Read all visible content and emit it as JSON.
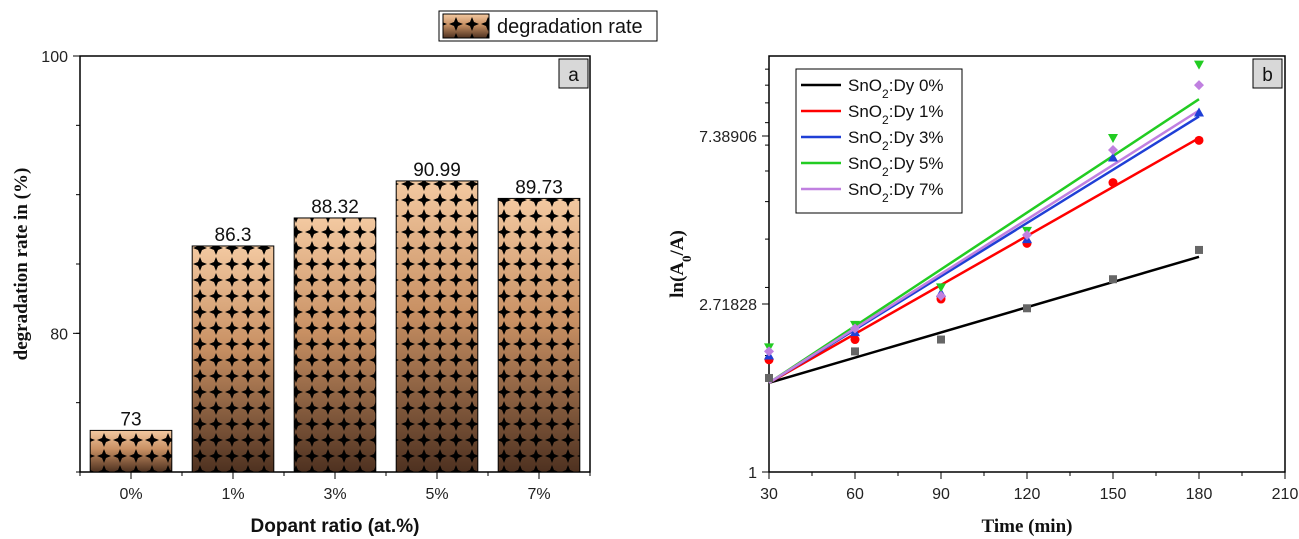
{
  "chart_data": [
    {
      "panel": "a",
      "type": "bar",
      "legend": [
        "degradation rate"
      ],
      "xlabel": "Dopant ratio (at.%)",
      "ylabel": "degradation rate in (%)",
      "categories": [
        "0%",
        "1%",
        "3%",
        "5%",
        "7%"
      ],
      "values": [
        73,
        86.3,
        88.32,
        90.99,
        89.73
      ],
      "data_labels": [
        "73",
        "86.3",
        "88.32",
        "90.99",
        "89.73"
      ],
      "ylim": [
        70,
        100
      ],
      "yticks": [
        80,
        100
      ],
      "yticks_labels": [
        "80",
        "100"
      ],
      "legend_placement": "top-right (outside plot)",
      "grid": false,
      "colors": {
        "bar_top": "#f3c9a1",
        "bar_bottom": "#5a3a24",
        "pattern": "#000000"
      }
    },
    {
      "panel": "b",
      "type": "scatter",
      "xlabel": "Time (min)",
      "ylabel": "ln(A0/A)",
      "y_scale": "log",
      "xlim": [
        30,
        210
      ],
      "xticks": [
        30,
        60,
        90,
        120,
        150,
        180,
        210
      ],
      "xticks_labels": [
        "30",
        "60",
        "90",
        "120",
        "150",
        "180",
        "210"
      ],
      "yticks_labels": [
        "1",
        "2.71828",
        "7.38906"
      ],
      "legend_placement": "top-left",
      "grid": false,
      "series": [
        {
          "name": "SnO2:Dy 0%",
          "color": "#000000",
          "marker": "square",
          "x": [
            30,
            60,
            90,
            120,
            150,
            180
          ],
          "y": [
            1.75,
            2.05,
            2.2,
            2.65,
            3.15,
            3.75
          ],
          "fit": [
            1.7,
            3.6
          ]
        },
        {
          "name": "SnO2:Dy 1%",
          "color": "#ff0000",
          "marker": "circle",
          "x": [
            30,
            60,
            90,
            120,
            150,
            180
          ],
          "y": [
            1.95,
            2.2,
            2.8,
            3.9,
            5.6,
            7.2
          ],
          "fit": [
            1.7,
            7.3
          ]
        },
        {
          "name": "SnO2:Dy 3%",
          "color": "#1f3fd6",
          "marker": "triangle-up",
          "x": [
            30,
            60,
            90,
            120,
            150,
            180
          ],
          "y": [
            2.0,
            2.3,
            2.9,
            4.0,
            6.5,
            8.5
          ],
          "fit": [
            1.7,
            8.3
          ]
        },
        {
          "name": "SnO2:Dy 5%",
          "color": "#22cc22",
          "marker": "triangle-down",
          "x": [
            30,
            60,
            90,
            120,
            150,
            180
          ],
          "y": [
            2.1,
            2.4,
            3.0,
            4.2,
            7.3,
            11.3
          ],
          "fit": [
            1.7,
            9.2
          ]
        },
        {
          "name": "SnO2:Dy 7%",
          "color": "#c080e0",
          "marker": "diamond",
          "x": [
            30,
            60,
            90,
            120,
            150,
            180
          ],
          "y": [
            2.05,
            2.35,
            2.85,
            4.1,
            6.8,
            10.0
          ],
          "fit": [
            1.7,
            8.6
          ]
        }
      ]
    }
  ],
  "panels": {
    "a": {
      "letter": "a"
    },
    "b": {
      "letter": "b"
    }
  },
  "legend_a": {
    "label": "degradation rate"
  },
  "legend_b": {
    "entries": [
      {
        "base": "SnO",
        "sub": "2",
        "rest": ":Dy 0%"
      },
      {
        "base": "SnO",
        "sub": "2",
        "rest": ":Dy 1%"
      },
      {
        "base": "SnO",
        "sub": "2",
        "rest": ":Dy 3%"
      },
      {
        "base": "SnO",
        "sub": "2",
        "rest": ":Dy 5%"
      },
      {
        "base": "SnO",
        "sub": "2",
        "rest": ":Dy 7%"
      }
    ]
  },
  "ylabel_b_parts": {
    "pre": "ln(A",
    "sub": "0",
    "post": "/A)"
  }
}
